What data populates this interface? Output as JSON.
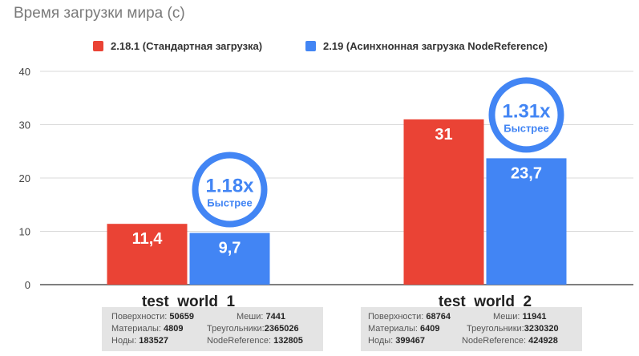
{
  "chart_data": {
    "type": "bar",
    "title": "Время загрузки мира (с)",
    "categories": [
      "test_world_1",
      "test_world_2"
    ],
    "series": [
      {
        "name": "2.18.1 (Стандартная загрузка)",
        "values": [
          11.4,
          31
        ],
        "labels": [
          "11,4",
          "31"
        ],
        "color": "#ea4335"
      },
      {
        "name": "2.19 (Асинхнонная загрузка NodeReference)",
        "values": [
          9.7,
          23.7
        ],
        "labels": [
          "9,7",
          "23,7"
        ],
        "color": "#4285f4"
      }
    ],
    "ylim": [
      0,
      40
    ],
    "yticks": [
      0,
      10,
      20,
      30,
      40
    ],
    "grid": true,
    "legend_position": "top",
    "annotations": [
      {
        "category": "test_world_1",
        "ratio": "1.18x",
        "text": "Быстрее"
      },
      {
        "category": "test_world_2",
        "ratio": "1.31x",
        "text": "Быстрее"
      }
    ],
    "badge_color": "#4285f4"
  },
  "stats": [
    {
      "category": "test_world_1",
      "rows": [
        [
          {
            "label": "Поверхности:",
            "value": "50659"
          },
          {
            "label": "Меши:",
            "value": "7441"
          }
        ],
        [
          {
            "label": "Материалы:",
            "value": "4809"
          },
          {
            "label": "Треугольники:",
            "value": "2365026"
          }
        ],
        [
          {
            "label": "Ноды:",
            "value": "183527"
          },
          {
            "label": "NodeReference:",
            "value": "132805"
          }
        ]
      ]
    },
    {
      "category": "test_world_2",
      "rows": [
        [
          {
            "label": "Поверхности:",
            "value": "68764"
          },
          {
            "label": "Меши:",
            "value": "11941"
          }
        ],
        [
          {
            "label": "Материалы:",
            "value": "6409"
          },
          {
            "label": "Треугольники:",
            "value": "3230320"
          }
        ],
        [
          {
            "label": "Ноды:",
            "value": "399467"
          },
          {
            "label": "NodeReference:",
            "value": "424928"
          }
        ]
      ]
    }
  ]
}
